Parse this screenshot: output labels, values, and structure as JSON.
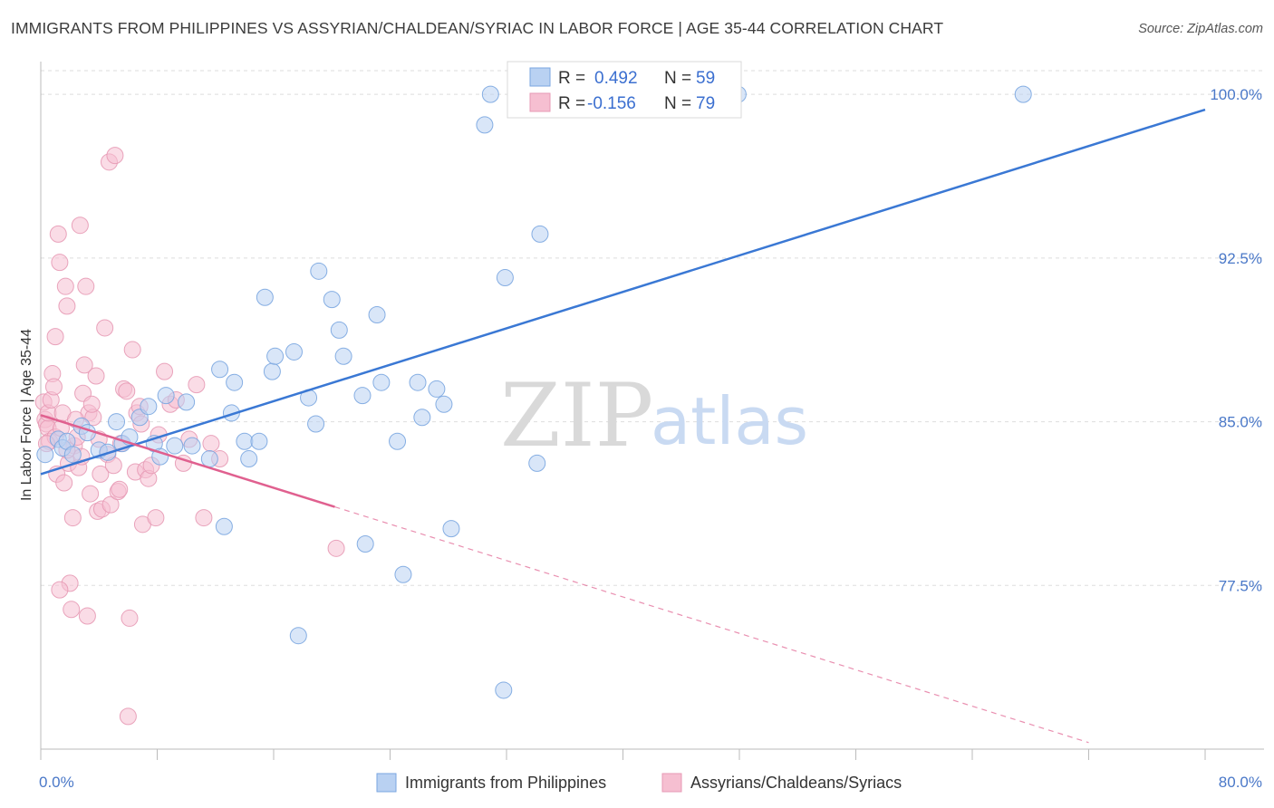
{
  "header": {
    "title": "IMMIGRANTS FROM PHILIPPINES VS ASSYRIAN/CHALDEAN/SYRIAC IN LABOR FORCE | AGE 35-44 CORRELATION CHART",
    "source": "Source: ZipAtlas.com"
  },
  "watermark": {
    "zip": "ZIP",
    "atlas": "atlas"
  },
  "colors": {
    "blue": "#3a78d4",
    "blue_fill": "#b9d1f2",
    "pink": "#e0608f",
    "pink_fill": "#f6bfd1",
    "grid": "#dddddd",
    "tick_label": "#4a78c8"
  },
  "legend": {
    "r_label": "R =",
    "n_label": "N =",
    "series1": {
      "r": "0.492",
      "n": "59"
    },
    "series2": {
      "r": "-0.156",
      "n": "79"
    }
  },
  "chart_data": {
    "type": "scatter",
    "xlabel": "",
    "ylabel": "In Labor Force | Age 35-44",
    "xlim": [
      0,
      80
    ],
    "ylim": [
      70,
      101.5
    ],
    "x_tick_labels": [
      "0.0%",
      "80.0%"
    ],
    "y_ticks": [
      77.5,
      85.0,
      92.5,
      100.0
    ],
    "y_tick_labels": [
      "77.5%",
      "85.0%",
      "92.5%",
      "100.0%"
    ],
    "grid": true,
    "legend_position": "top-center",
    "series": [
      {
        "name": "Immigrants from Philippines",
        "color": "#3a78d4",
        "trend": {
          "x": [
            0,
            80
          ],
          "y": [
            82.6,
            99.3
          ],
          "dashed_extension": false
        },
        "points": [
          [
            0.3,
            83.5
          ],
          [
            1.2,
            84.2
          ],
          [
            1.5,
            83.8
          ],
          [
            1.8,
            84.1
          ],
          [
            2.2,
            83.5
          ],
          [
            2.8,
            84.8
          ],
          [
            3.2,
            84.5
          ],
          [
            4.0,
            83.7
          ],
          [
            4.6,
            83.6
          ],
          [
            5.2,
            85.0
          ],
          [
            5.6,
            84.0
          ],
          [
            6.1,
            84.3
          ],
          [
            6.8,
            85.2
          ],
          [
            7.4,
            85.7
          ],
          [
            7.8,
            84.0
          ],
          [
            8.2,
            83.4
          ],
          [
            8.6,
            86.2
          ],
          [
            9.2,
            83.9
          ],
          [
            10.0,
            85.9
          ],
          [
            10.4,
            83.9
          ],
          [
            11.6,
            83.3
          ],
          [
            12.3,
            87.4
          ],
          [
            12.6,
            80.2
          ],
          [
            13.1,
            85.4
          ],
          [
            13.3,
            86.8
          ],
          [
            14.0,
            84.1
          ],
          [
            14.3,
            83.3
          ],
          [
            15.0,
            84.1
          ],
          [
            15.4,
            90.7
          ],
          [
            15.9,
            87.3
          ],
          [
            16.1,
            88.0
          ],
          [
            17.4,
            88.2
          ],
          [
            17.7,
            75.2
          ],
          [
            18.4,
            86.1
          ],
          [
            18.9,
            84.9
          ],
          [
            19.1,
            91.9
          ],
          [
            20.0,
            90.6
          ],
          [
            20.5,
            89.2
          ],
          [
            20.8,
            88.0
          ],
          [
            22.1,
            86.2
          ],
          [
            22.3,
            79.4
          ],
          [
            23.1,
            89.9
          ],
          [
            23.4,
            86.8
          ],
          [
            24.5,
            84.1
          ],
          [
            24.9,
            78.0
          ],
          [
            25.9,
            86.8
          ],
          [
            26.2,
            85.2
          ],
          [
            27.2,
            86.5
          ],
          [
            27.7,
            85.8
          ],
          [
            28.2,
            80.1
          ],
          [
            30.5,
            98.6
          ],
          [
            30.9,
            100.0
          ],
          [
            31.8,
            72.7
          ],
          [
            31.9,
            91.6
          ],
          [
            34.3,
            93.6
          ],
          [
            34.1,
            83.1
          ],
          [
            47.9,
            100.0
          ],
          [
            67.5,
            100.0
          ],
          [
            34.9,
            100.0
          ]
        ]
      },
      {
        "name": "Assyrians/Chaldeans/Syriacs",
        "color": "#e0608f",
        "trend": {
          "x": [
            0,
            20.2
          ],
          "y": [
            85.3,
            81.1
          ],
          "dashed_x": [
            20.2,
            72
          ],
          "dashed_y": [
            81.1,
            70.3
          ]
        },
        "points": [
          [
            0.2,
            85.9
          ],
          [
            0.3,
            85.1
          ],
          [
            0.4,
            84.9
          ],
          [
            0.5,
            84.7
          ],
          [
            0.5,
            85.4
          ],
          [
            0.6,
            84.1
          ],
          [
            0.7,
            86.0
          ],
          [
            0.8,
            87.2
          ],
          [
            0.9,
            86.6
          ],
          [
            1.0,
            84.3
          ],
          [
            1.0,
            88.9
          ],
          [
            1.1,
            82.6
          ],
          [
            1.2,
            93.6
          ],
          [
            1.3,
            92.3
          ],
          [
            1.4,
            84.7
          ],
          [
            1.5,
            85.4
          ],
          [
            1.6,
            82.2
          ],
          [
            1.7,
            91.2
          ],
          [
            1.8,
            90.3
          ],
          [
            1.9,
            83.1
          ],
          [
            2.0,
            77.6
          ],
          [
            2.1,
            76.4
          ],
          [
            2.2,
            80.6
          ],
          [
            2.3,
            83.9
          ],
          [
            2.5,
            84.3
          ],
          [
            2.6,
            82.9
          ],
          [
            2.7,
            94.0
          ],
          [
            2.8,
            83.4
          ],
          [
            2.9,
            86.3
          ],
          [
            3.0,
            87.6
          ],
          [
            3.1,
            91.2
          ],
          [
            3.2,
            76.1
          ],
          [
            3.3,
            85.4
          ],
          [
            3.4,
            81.7
          ],
          [
            3.6,
            85.2
          ],
          [
            3.8,
            87.1
          ],
          [
            3.9,
            80.9
          ],
          [
            4.0,
            84.2
          ],
          [
            4.1,
            82.6
          ],
          [
            4.2,
            81.0
          ],
          [
            4.4,
            89.3
          ],
          [
            4.6,
            83.5
          ],
          [
            4.7,
            96.9
          ],
          [
            4.8,
            81.2
          ],
          [
            5.0,
            83.0
          ],
          [
            5.1,
            97.2
          ],
          [
            5.3,
            81.8
          ],
          [
            5.5,
            84.0
          ],
          [
            5.7,
            86.5
          ],
          [
            5.9,
            86.4
          ],
          [
            6.0,
            71.5
          ],
          [
            6.1,
            76.0
          ],
          [
            6.3,
            88.3
          ],
          [
            6.5,
            82.7
          ],
          [
            6.6,
            85.4
          ],
          [
            6.8,
            85.7
          ],
          [
            7.0,
            80.3
          ],
          [
            7.2,
            82.8
          ],
          [
            7.4,
            82.4
          ],
          [
            7.6,
            83.0
          ],
          [
            7.9,
            80.6
          ],
          [
            8.1,
            84.4
          ],
          [
            8.5,
            87.3
          ],
          [
            8.9,
            85.8
          ],
          [
            9.3,
            86.0
          ],
          [
            9.8,
            83.1
          ],
          [
            10.2,
            84.2
          ],
          [
            10.7,
            86.7
          ],
          [
            11.2,
            80.6
          ],
          [
            11.7,
            84.0
          ],
          [
            12.3,
            83.3
          ],
          [
            20.3,
            79.2
          ],
          [
            0.4,
            84.0
          ],
          [
            1.8,
            83.7
          ],
          [
            2.4,
            85.1
          ],
          [
            3.5,
            85.8
          ],
          [
            5.4,
            81.9
          ],
          [
            6.9,
            84.9
          ],
          [
            1.3,
            77.3
          ]
        ]
      }
    ]
  }
}
